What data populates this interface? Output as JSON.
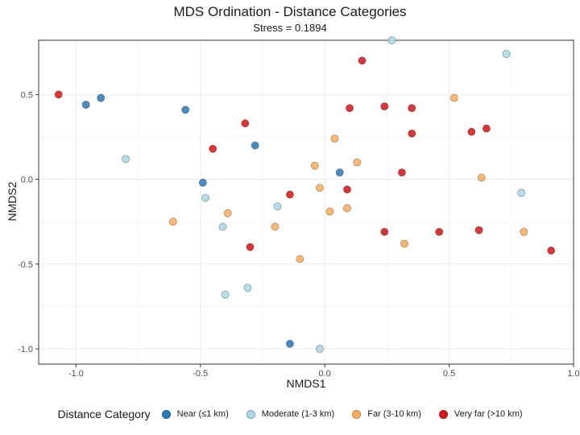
{
  "chart_data": {
    "type": "scatter",
    "title": "MDS Ordination - Distance Categories",
    "subtitle": "Stress = 0.1894",
    "xlabel": "NMDS1",
    "ylabel": "NMDS2",
    "xlim": [
      -1.15,
      1.0
    ],
    "ylim": [
      -1.09,
      0.82
    ],
    "xticks": [
      -1.0,
      -0.5,
      0.0,
      0.5,
      1.0
    ],
    "xtick_labels": [
      "-1.0",
      "-0.5",
      "0.0",
      "0.5",
      "1.0"
    ],
    "yticks": [
      -1.0,
      -0.5,
      0.0,
      0.5
    ],
    "ytick_labels": [
      "-1.0",
      "-0.5",
      "0.0",
      "0.5"
    ],
    "grid": true,
    "legend_position": "bottom",
    "legend_title": "Distance Category",
    "series": [
      {
        "name": "Near (≤1 km)",
        "color": "#2f7bb6",
        "points": [
          [
            -0.96,
            0.44
          ],
          [
            -0.9,
            0.48
          ],
          [
            -0.56,
            0.41
          ],
          [
            -0.28,
            0.2
          ],
          [
            -0.49,
            -0.02
          ],
          [
            0.06,
            0.04
          ],
          [
            -0.14,
            -0.97
          ]
        ]
      },
      {
        "name": "Moderate (1-3 km)",
        "color": "#abd9e9",
        "points": [
          [
            0.27,
            0.82
          ],
          [
            0.73,
            0.74
          ],
          [
            -0.8,
            0.12
          ],
          [
            -0.48,
            -0.11
          ],
          [
            -0.19,
            -0.16
          ],
          [
            -0.41,
            -0.28
          ],
          [
            -0.31,
            -0.64
          ],
          [
            -0.4,
            -0.68
          ],
          [
            0.79,
            -0.08
          ],
          [
            -0.02,
            -1.0
          ]
        ]
      },
      {
        "name": "Far (3-10 km)",
        "color": "#fdae61",
        "points": [
          [
            0.52,
            0.48
          ],
          [
            0.04,
            0.24
          ],
          [
            -0.04,
            0.08
          ],
          [
            0.13,
            0.1
          ],
          [
            -0.02,
            -0.05
          ],
          [
            0.02,
            -0.19
          ],
          [
            0.09,
            -0.17
          ],
          [
            -0.39,
            -0.2
          ],
          [
            -0.61,
            -0.25
          ],
          [
            -0.2,
            -0.28
          ],
          [
            -0.1,
            -0.47
          ],
          [
            0.32,
            -0.38
          ],
          [
            0.63,
            0.01
          ],
          [
            0.8,
            -0.31
          ]
        ]
      },
      {
        "name": "Very far (>10 km)",
        "color": "#d7191c",
        "points": [
          [
            -1.07,
            0.5
          ],
          [
            0.15,
            0.7
          ],
          [
            0.1,
            0.42
          ],
          [
            0.24,
            0.43
          ],
          [
            0.35,
            0.42
          ],
          [
            -0.32,
            0.33
          ],
          [
            0.35,
            0.27
          ],
          [
            -0.45,
            0.18
          ],
          [
            0.59,
            0.28
          ],
          [
            0.65,
            0.3
          ],
          [
            0.31,
            0.04
          ],
          [
            -0.14,
            -0.09
          ],
          [
            0.09,
            -0.06
          ],
          [
            0.24,
            -0.31
          ],
          [
            0.46,
            -0.31
          ],
          [
            0.62,
            -0.3
          ],
          [
            -0.3,
            -0.4
          ],
          [
            0.91,
            -0.42
          ]
        ]
      }
    ]
  }
}
